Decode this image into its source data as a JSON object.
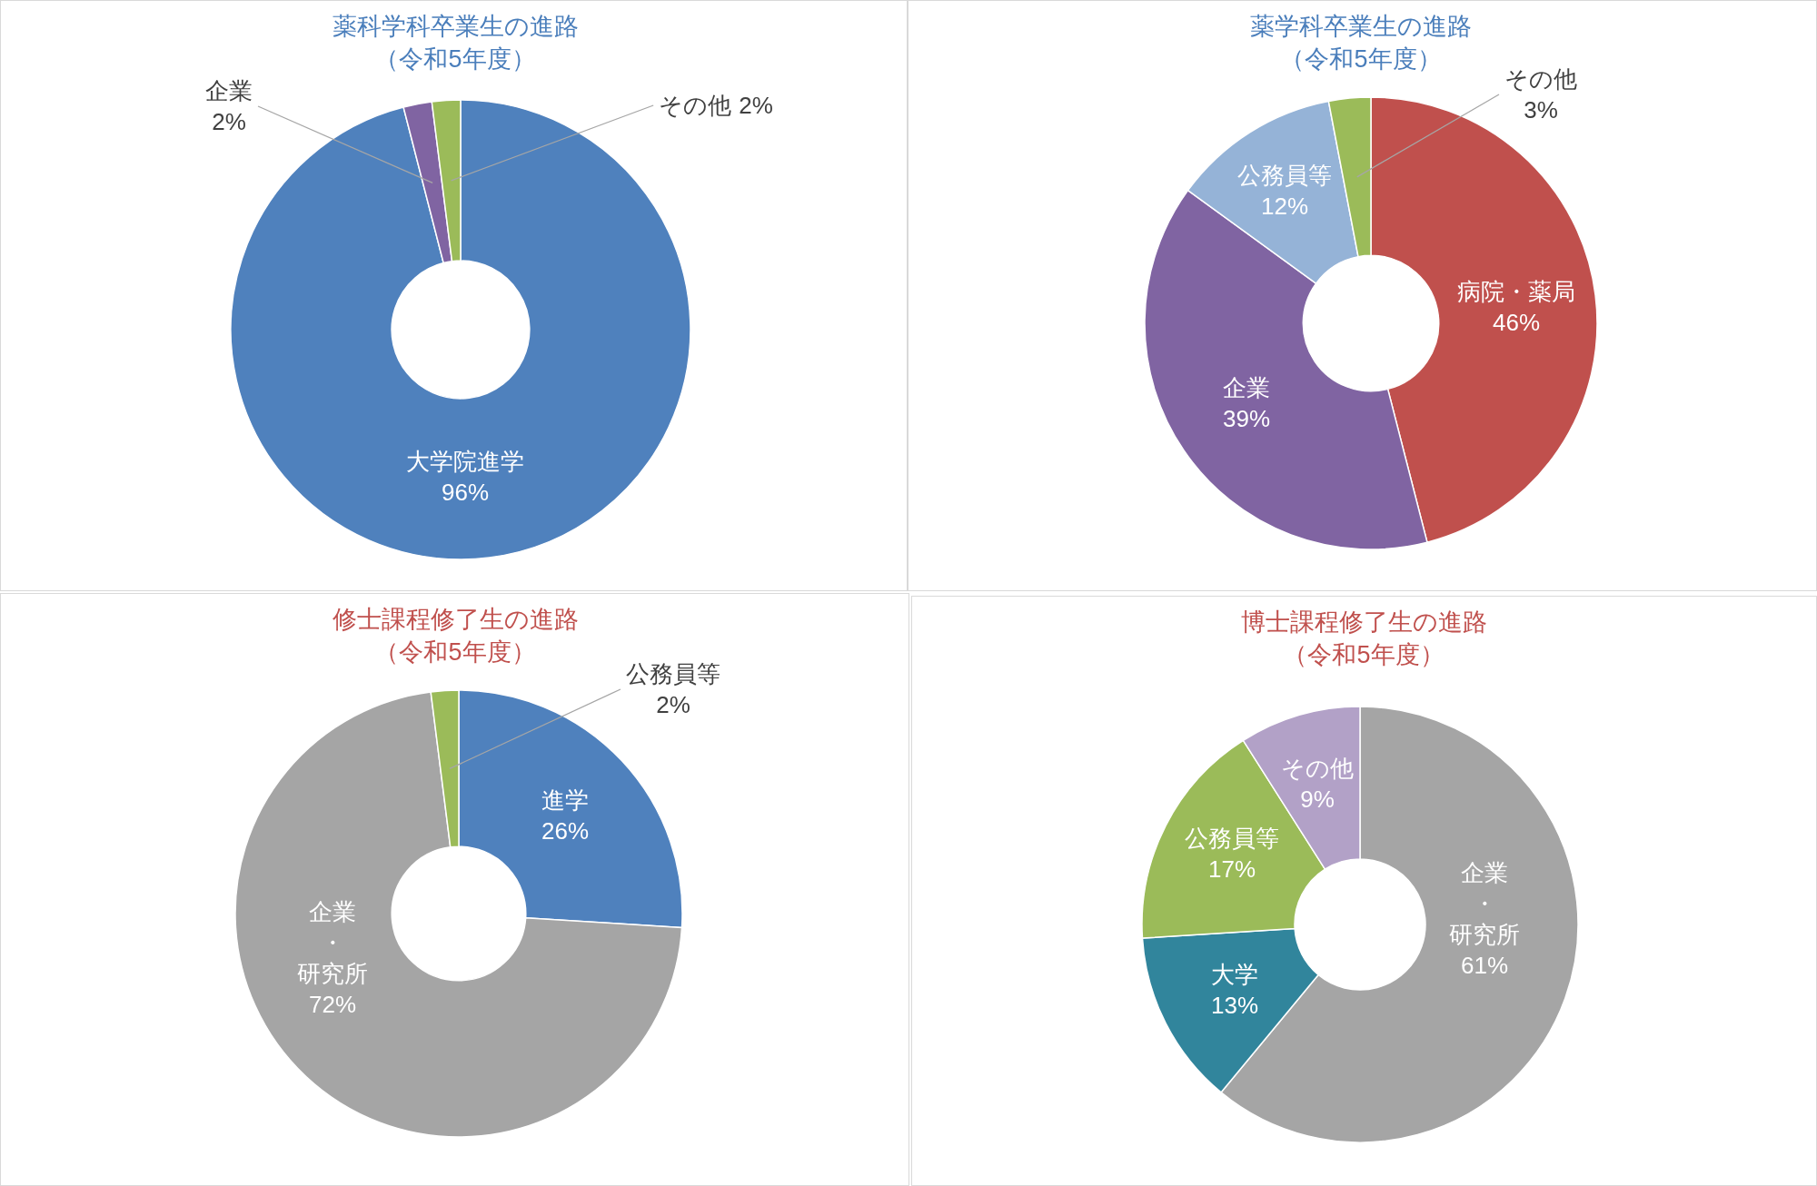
{
  "chart_data": [
    {
      "type": "donut",
      "title": "薬科学科卒業生の進路",
      "subtitle": "（令和5年度）",
      "categories": [
        "大学院進学",
        "企業",
        "その他"
      ],
      "values": [
        96,
        2,
        2
      ],
      "colors": [
        "#4f81bd",
        "#8064a2",
        "#9bbb59"
      ],
      "value_labels": [
        "96%",
        "2%",
        "2%"
      ]
    },
    {
      "type": "donut",
      "title": "薬学科卒業生の進路",
      "subtitle": "（令和5年度）",
      "categories": [
        "病院・薬局",
        "企業",
        "公務員等",
        "その他"
      ],
      "values": [
        46,
        39,
        12,
        3
      ],
      "colors": [
        "#c0504d",
        "#8064a2",
        "#95b3d7",
        "#9bbb59"
      ],
      "value_labels": [
        "46%",
        "39%",
        "12%",
        "3%"
      ]
    },
    {
      "type": "donut",
      "title": "修士課程修了生の進路",
      "subtitle": "（令和5年度）",
      "categories": [
        "進学",
        "企業・研究所",
        "公務員等"
      ],
      "values": [
        26,
        72,
        2
      ],
      "colors": [
        "#4f81bd",
        "#a5a5a5",
        "#9bbb59"
      ],
      "value_labels": [
        "26%",
        "72%",
        "2%"
      ]
    },
    {
      "type": "donut",
      "title": "博士課程修了生の進路",
      "subtitle": "（令和5年度）",
      "categories": [
        "企業・研究所",
        "大学",
        "公務員等",
        "その他"
      ],
      "values": [
        61,
        13,
        17,
        9
      ],
      "colors": [
        "#a5a5a5",
        "#31859c",
        "#9bbb59",
        "#b2a1c7"
      ],
      "value_labels": [
        "61%",
        "13%",
        "17%",
        "9%"
      ]
    }
  ]
}
